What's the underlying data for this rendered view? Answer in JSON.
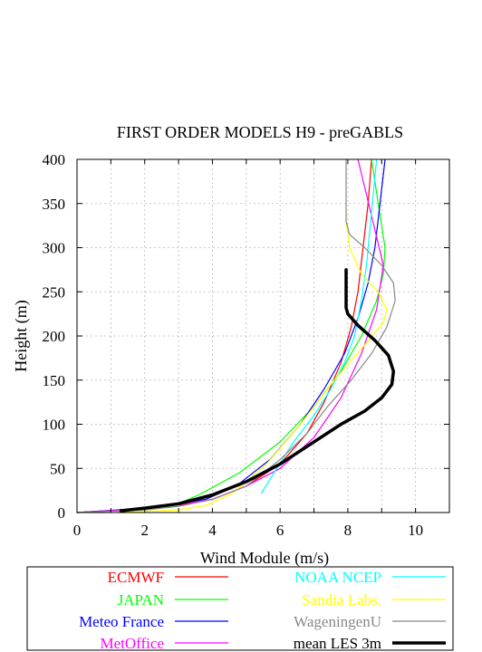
{
  "chart_data": {
    "type": "line",
    "title": "FIRST ORDER MODELS H9  - preGABLS",
    "xlabel": "Wind Module (m/s)",
    "ylabel": "Height (m)",
    "xlim": [
      0,
      11
    ],
    "ylim": [
      0,
      400
    ],
    "xticks": [
      "0",
      "2",
      "4",
      "6",
      "8",
      "10"
    ],
    "yticks": [
      "0",
      "50",
      "100",
      "150",
      "200",
      "250",
      "300",
      "350",
      "400"
    ],
    "grid": true,
    "legend_position": "bottom",
    "series": [
      {
        "name": "ECMWF",
        "color": "#ff0000",
        "width": 1.2,
        "x": [
          0,
          2.2,
          3.3,
          4.0,
          5.0,
          6.0,
          6.8,
          7.3,
          7.8,
          8.1,
          8.3,
          8.45,
          8.6,
          8.7
        ],
        "y": [
          0,
          5,
          10,
          15,
          30,
          55,
          90,
          125,
          170,
          210,
          250,
          300,
          350,
          400
        ]
      },
      {
        "name": "JAPAN",
        "color": "#00ff00",
        "width": 1.2,
        "x": [
          0,
          2.8,
          3.6,
          4.8,
          6.0,
          7.0,
          7.8,
          8.4,
          8.85,
          9.05,
          9.1,
          8.9,
          8.7
        ],
        "y": [
          0,
          7,
          20,
          45,
          80,
          120,
          160,
          200,
          240,
          270,
          300,
          350,
          400
        ]
      },
      {
        "name": "Meteo France",
        "color": "#0000ff",
        "width": 1.2,
        "x": [
          0,
          2.0,
          3.0,
          3.8,
          4.7,
          5.7,
          6.6,
          7.3,
          7.9,
          8.3,
          8.6,
          8.8,
          8.95,
          9.1
        ],
        "y": [
          0,
          5,
          10,
          15,
          30,
          60,
          100,
          140,
          180,
          220,
          260,
          300,
          350,
          400
        ]
      },
      {
        "name": "MetOffice",
        "color": "#ff00ff",
        "width": 1.2,
        "x": [
          0,
          2.2,
          3.2,
          4.0,
          5.0,
          6.0,
          7.0,
          7.8,
          8.4,
          8.85,
          9.05,
          8.8,
          8.55,
          8.3
        ],
        "y": [
          0,
          5,
          10,
          15,
          30,
          50,
          85,
          130,
          180,
          230,
          280,
          320,
          360,
          400
        ]
      },
      {
        "name": "NOAA NCEP",
        "color": "#00ffff",
        "width": 1.2,
        "x": [
          5.45,
          5.9,
          6.4,
          7.0,
          7.5,
          7.9,
          8.2,
          8.4,
          8.55,
          8.65,
          8.75,
          8.85
        ],
        "y": [
          22,
          50,
          80,
          110,
          140,
          170,
          200,
          240,
          280,
          320,
          360,
          400
        ]
      },
      {
        "name": "Sandia Labs.",
        "color": "#ffff00",
        "width": 1.2,
        "x": [
          1.2,
          3.0,
          3.8,
          4.6,
          5.6,
          6.6,
          7.6,
          8.5,
          9.05,
          9.15,
          8.9,
          8.4,
          8.05,
          7.95,
          7.95
        ],
        "y": [
          0,
          3,
          8,
          22,
          55,
          100,
          150,
          190,
          215,
          230,
          250,
          270,
          300,
          330,
          340
        ]
      },
      {
        "name": "WageningenU",
        "color": "#888888",
        "width": 1.2,
        "x": [
          7.95,
          7.95,
          8.05,
          8.5,
          9.0,
          9.35,
          9.4,
          9.15,
          8.7,
          8.1,
          7.4,
          6.8,
          6.0,
          5.0,
          4.0,
          3.0,
          2.0,
          0
        ],
        "y": [
          400,
          330,
          315,
          300,
          280,
          260,
          240,
          210,
          180,
          150,
          120,
          90,
          60,
          30,
          15,
          7,
          3,
          0
        ]
      },
      {
        "name": "mean LES 3m",
        "color": "#000000",
        "width": 3.5,
        "x": [
          7.95,
          7.95,
          7.95,
          8.0,
          8.3,
          8.8,
          9.2,
          9.35,
          9.3,
          9.0,
          8.5,
          7.8,
          7.0,
          6.0,
          5.0,
          4.0,
          3.0,
          2.0,
          1.3
        ],
        "y": [
          275,
          250,
          232,
          225,
          212,
          195,
          178,
          160,
          145,
          130,
          115,
          100,
          80,
          55,
          35,
          20,
          10,
          5,
          2
        ]
      }
    ]
  }
}
